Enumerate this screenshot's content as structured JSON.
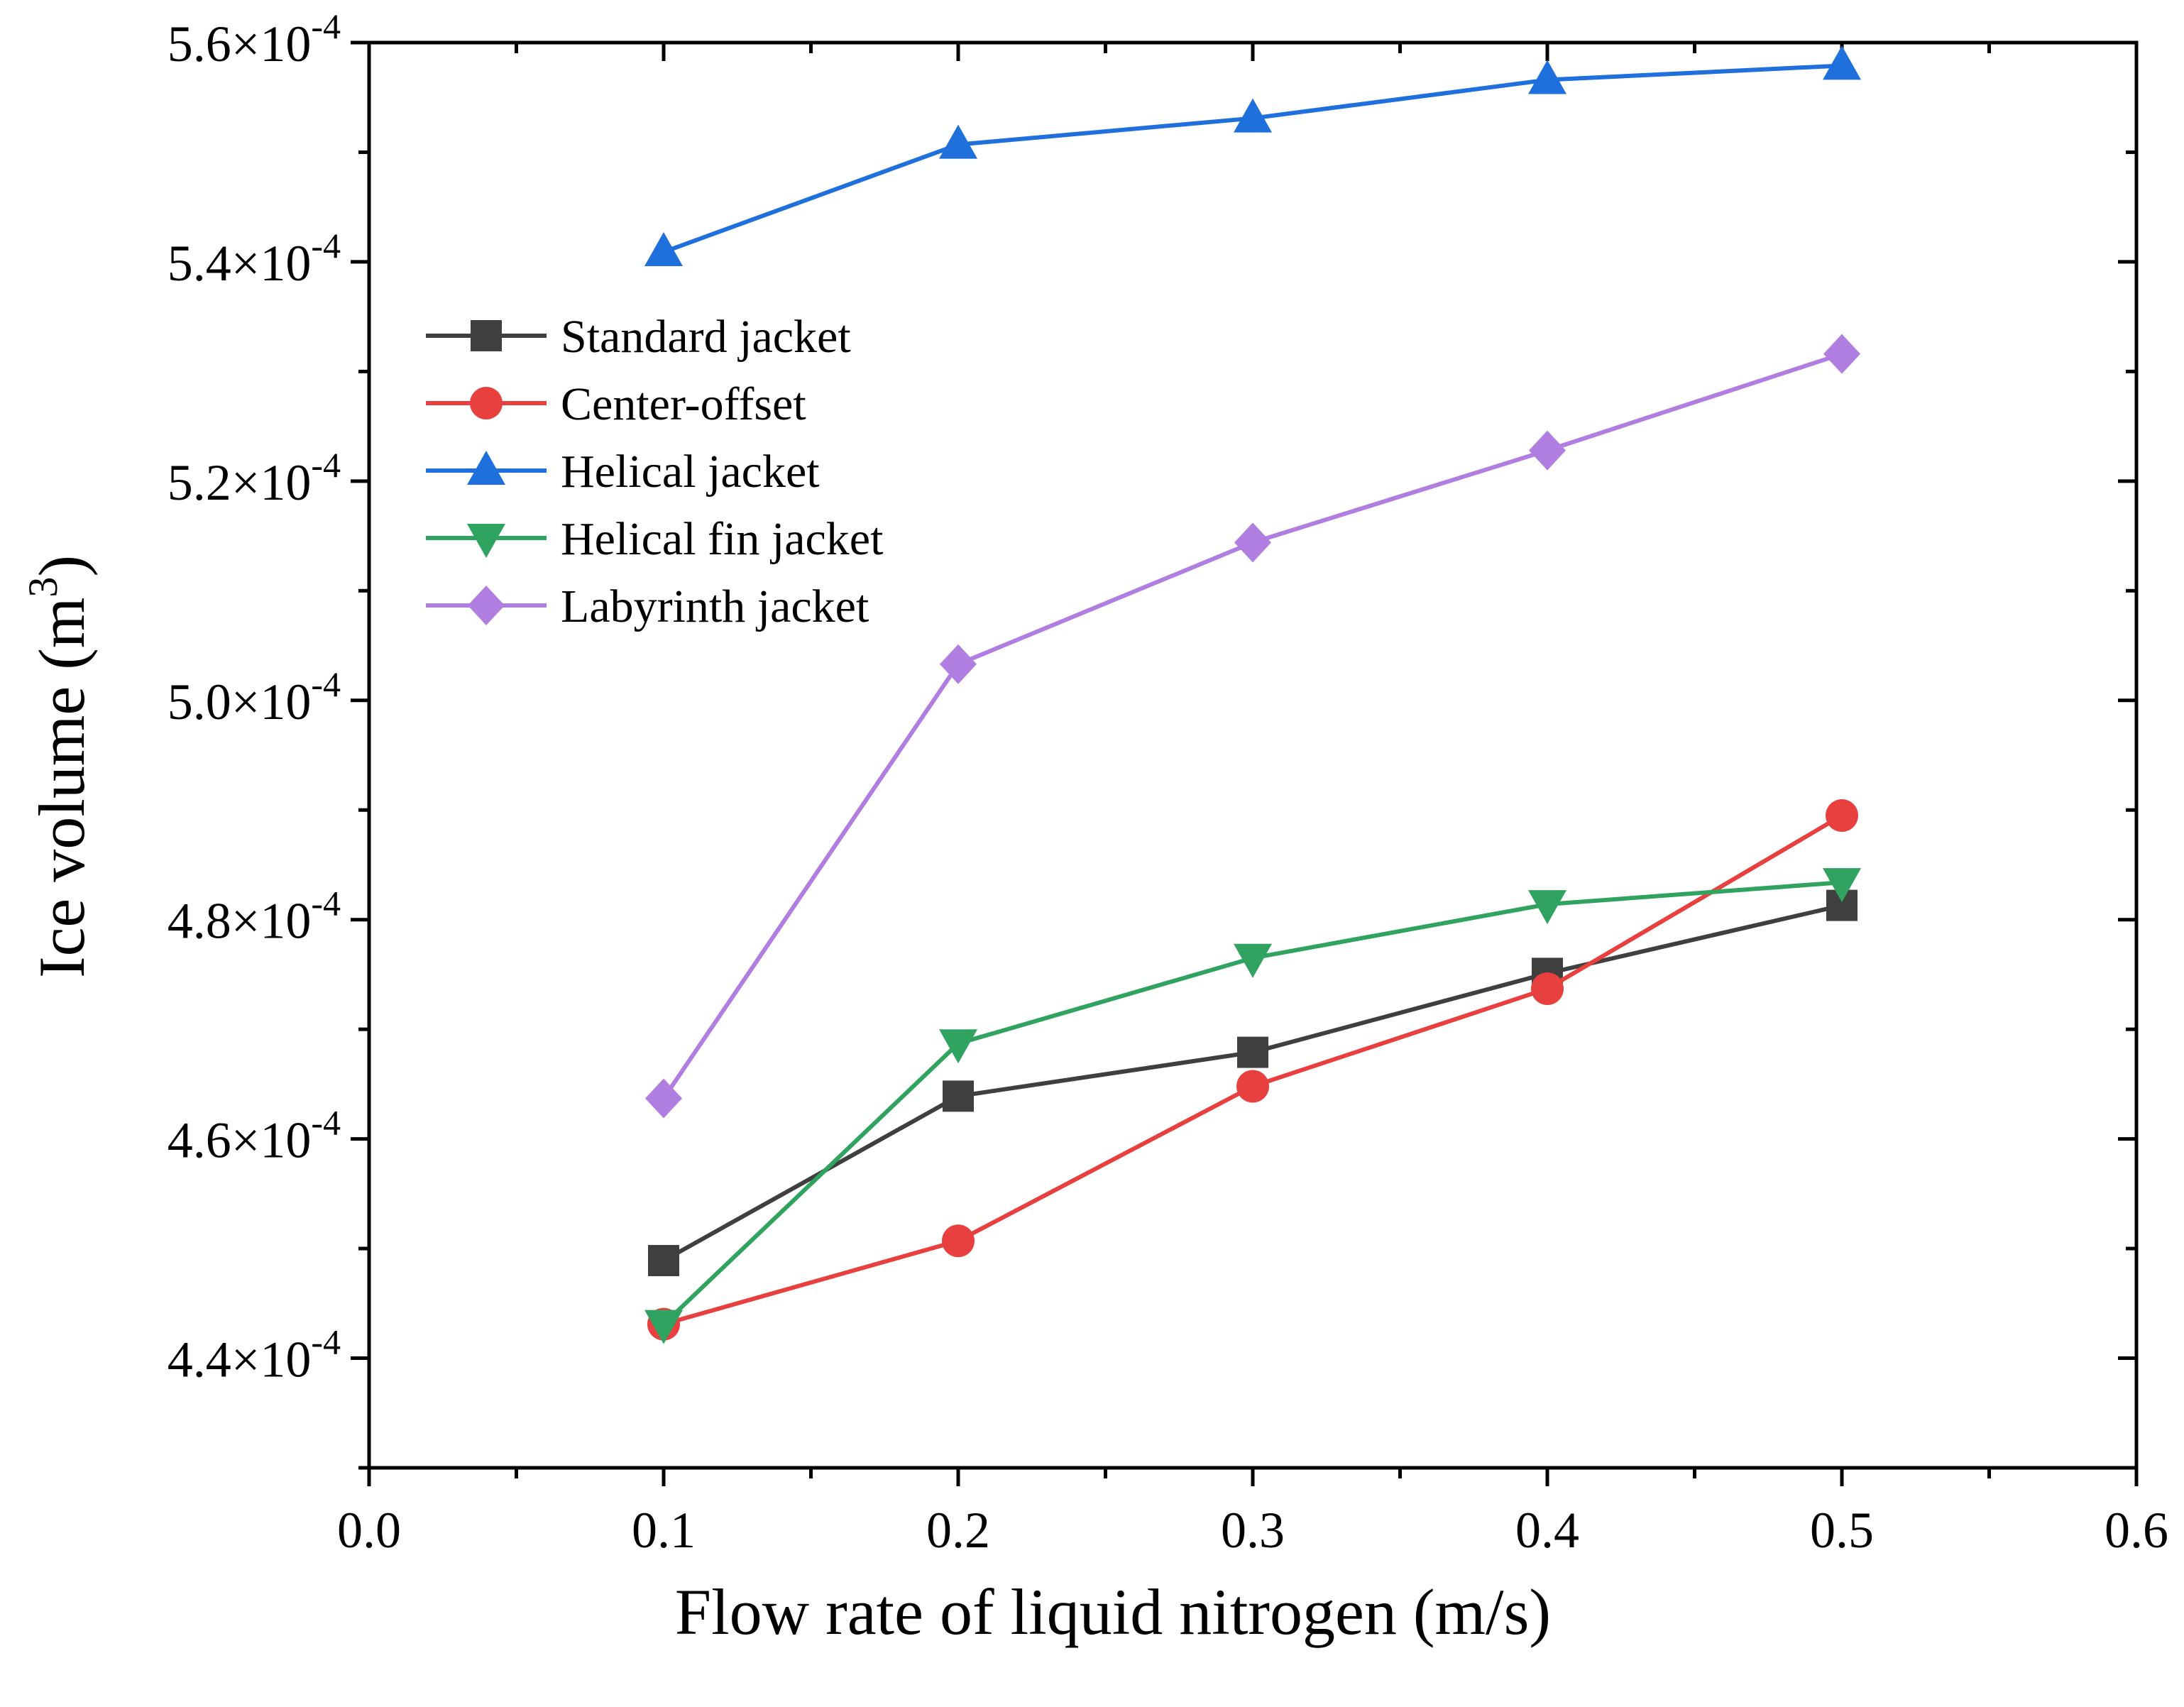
{
  "chart_data": {
    "type": "line",
    "xlabel": "Flow rate of liquid nitrogen (m/s)",
    "ylabel_main": "Ice volume (m",
    "ylabel_sup": "3",
    "ylabel_end": ")",
    "xlim": [
      0.0,
      0.6
    ],
    "ylim": [
      0.00043,
      0.00056
    ],
    "x_ticks": [
      {
        "value": 0.0,
        "label": "0.0"
      },
      {
        "value": 0.1,
        "label": "0.1"
      },
      {
        "value": 0.2,
        "label": "0.2"
      },
      {
        "value": 0.3,
        "label": "0.3"
      },
      {
        "value": 0.4,
        "label": "0.4"
      },
      {
        "value": 0.5,
        "label": "0.5"
      },
      {
        "value": 0.6,
        "label": "0.6"
      }
    ],
    "x_minor_ticks": [
      0.05,
      0.15,
      0.25,
      0.35,
      0.45,
      0.55
    ],
    "y_ticks": [
      {
        "value": 0.00044,
        "mantissa": "4.4",
        "times": "×10",
        "exponent": "-4"
      },
      {
        "value": 0.00046,
        "mantissa": "4.6",
        "times": "×10",
        "exponent": "-4"
      },
      {
        "value": 0.00048,
        "mantissa": "4.8",
        "times": "×10",
        "exponent": "-4"
      },
      {
        "value": 0.0005,
        "mantissa": "5.0",
        "times": "×10",
        "exponent": "-4"
      },
      {
        "value": 0.00052,
        "mantissa": "5.2",
        "times": "×10",
        "exponent": "-4"
      },
      {
        "value": 0.00054,
        "mantissa": "5.4",
        "times": "×10",
        "exponent": "-4"
      },
      {
        "value": 0.00056,
        "mantissa": "5.6",
        "times": "×10",
        "exponent": "-4"
      }
    ],
    "y_minor_ticks": [
      0.00043,
      0.00045,
      0.00047,
      0.00049,
      0.00051,
      0.00053,
      0.00055
    ],
    "x": [
      0.1,
      0.2,
      0.3,
      0.4,
      0.5
    ],
    "legend_position": "upper-left",
    "series": [
      {
        "name": "Standard jacket",
        "color": "#3f3f3f",
        "marker": "square",
        "values": [
          0.0004489,
          0.0004639,
          0.0004679,
          0.0004751,
          0.0004813
        ]
      },
      {
        "name": "Center-offset",
        "color": "#e8403f",
        "marker": "circle",
        "values": [
          0.0004431,
          0.0004507,
          0.0004648,
          0.0004737,
          0.0004895
        ]
      },
      {
        "name": "Helical jacket",
        "color": "#1f6fdc",
        "marker": "triangle-up",
        "values": [
          0.0005409,
          0.0005507,
          0.0005531,
          0.0005566,
          0.0005579
        ]
      },
      {
        "name": "Helical fin jacket",
        "color": "#2fa35f",
        "marker": "triangle-down",
        "values": [
          0.0004431,
          0.0004687,
          0.0004765,
          0.0004814,
          0.0004834
        ]
      },
      {
        "name": "Labyrinth jacket",
        "color": "#b07ee0",
        "marker": "diamond",
        "values": [
          0.0004637,
          0.0005033,
          0.0005144,
          0.0005228,
          0.0005316
        ]
      }
    ]
  }
}
